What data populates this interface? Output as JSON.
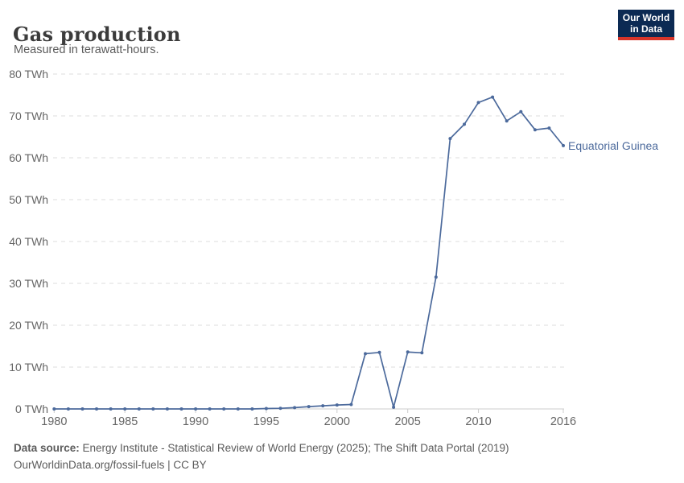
{
  "header": {
    "title": "Gas production",
    "subtitle": "Measured in terawatt-hours.",
    "logo": {
      "line1": "Our World",
      "line2": "in Data"
    }
  },
  "chart_data": {
    "type": "line",
    "title": "Gas production",
    "subtitle": "Measured in terawatt-hours.",
    "unit": "TWh",
    "grid": true,
    "legend_position": "end-of-line-label",
    "ylim": [
      0,
      80
    ],
    "xlim": [
      1980,
      2016
    ],
    "yticks": [
      0,
      10,
      20,
      30,
      40,
      50,
      60,
      70,
      80
    ],
    "xticks": [
      1980,
      1985,
      1990,
      1995,
      2000,
      2005,
      2010,
      2016
    ],
    "series": [
      {
        "name": "Equatorial Guinea",
        "color": "#4C6A9C",
        "x": [
          1980,
          1981,
          1982,
          1983,
          1984,
          1985,
          1986,
          1987,
          1988,
          1989,
          1990,
          1991,
          1992,
          1993,
          1994,
          1995,
          1996,
          1997,
          1998,
          1999,
          2000,
          2001,
          2002,
          2003,
          2004,
          2005,
          2006,
          2007,
          2008,
          2009,
          2010,
          2011,
          2012,
          2013,
          2014,
          2015,
          2016
        ],
        "values": [
          0,
          0,
          0,
          0,
          0,
          0,
          0,
          0,
          0,
          0,
          0,
          0,
          0,
          0,
          0,
          0.1,
          0.15,
          0.3,
          0.55,
          0.75,
          0.95,
          1.05,
          13.2,
          13.5,
          0.4,
          13.6,
          13.4,
          31.5,
          64.6,
          68,
          73.2,
          74.5,
          68.8,
          71,
          66.7,
          67.1,
          62.9
        ]
      }
    ]
  },
  "footer": {
    "source_label": "Data source:",
    "source_text": " Energy Institute - Statistical Review of World Energy (2025); The Shift Data Portal (2019)",
    "link_text": "OurWorldinData.org/fossil-fuels",
    "suffix": " | CC BY"
  },
  "colors": {
    "line": "#4C6A9C",
    "grid": "#dddddd",
    "axis": "#cccccc",
    "tick_label": "#666666",
    "title": "#3b3b3b",
    "subtitle": "#5b5b5b",
    "footer": "#5b5b5b",
    "logo_bg": "#0c2a53",
    "logo_accent": "#d8352a"
  }
}
